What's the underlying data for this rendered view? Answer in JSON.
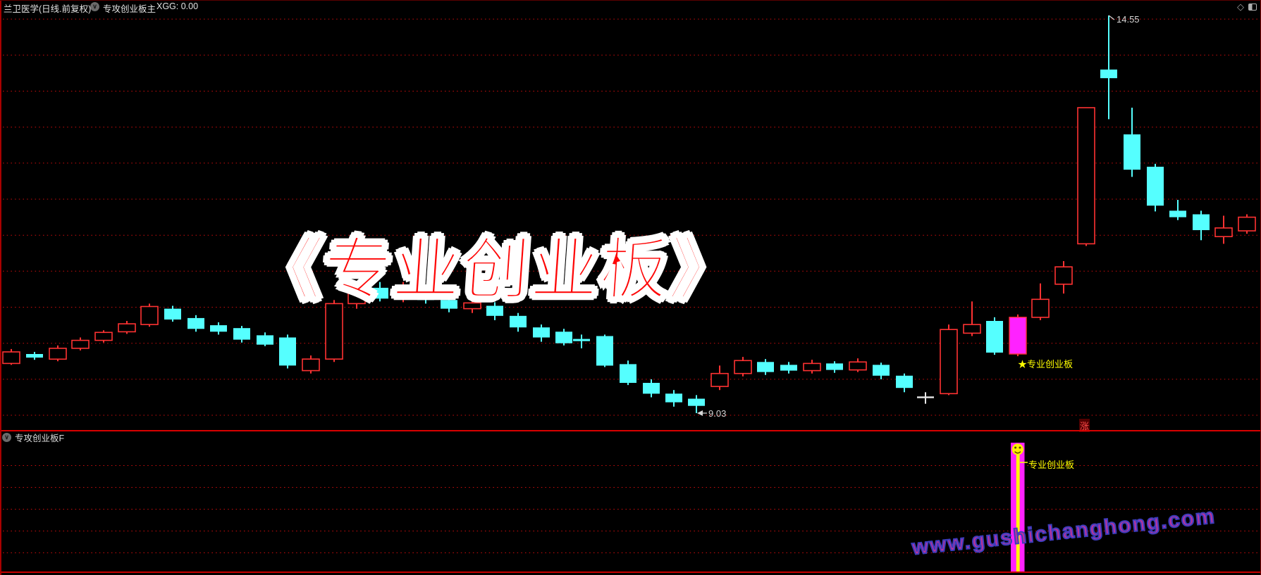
{
  "titlebar": {
    "stock_title": "兰卫医学(日线.前复权)",
    "indicator_main": "专攻创业板主",
    "xgg_value": "XGG: 0.00"
  },
  "main_chart": {
    "overlay_title": "《专业创业板》",
    "high_label": "14.55",
    "low_label": "9.03",
    "star_signal_label": "★专业创业板",
    "rise_label": "涨"
  },
  "sub_chart": {
    "indicator_label": "专攻创业板F",
    "signal_label": "专业创业板"
  },
  "watermark": "www.gushichanghong.com",
  "colors": {
    "up_candle": "#ff3232",
    "down_candle": "#55ffff",
    "signal_candle": "#ff22ff",
    "doji_candle": "#e8e8e8",
    "gridline": "#cf0d0d",
    "price_label": "#d5d5d5",
    "signal_text": "#ffff00",
    "overlay_fill": "#fe0606",
    "overlay_outline": "#ffffff",
    "watermark_fill": "#b8339e",
    "watermark_outline": "#3c3cbc",
    "panel_frame": "#d80000"
  },
  "chart_data": {
    "type": "candlestick",
    "title": "兰卫医学 日线 前复权",
    "legend_position": "none",
    "grid": {
      "visible": true,
      "style": "dotted-red-horizontal",
      "price_max": 14.5,
      "price_min": 9.0,
      "price_step": 0.5
    },
    "ylim": [
      8.84,
      14.59
    ],
    "price_high_marker": 14.55,
    "price_low_marker": 9.03,
    "candle_types": {
      "u": "up-red-hollow",
      "d": "down-cyan-solid",
      "s": "signal-magenta",
      "j": "doji-white"
    },
    "candles": [
      [
        16,
        9.72,
        9.92,
        9.7,
        9.88,
        "u"
      ],
      [
        49,
        9.85,
        9.88,
        9.77,
        9.8,
        "d"
      ],
      [
        82,
        9.78,
        9.97,
        9.75,
        9.93,
        "u"
      ],
      [
        114,
        9.93,
        10.08,
        9.9,
        10.04,
        "u"
      ],
      [
        147,
        10.04,
        10.18,
        10.01,
        10.15,
        "u"
      ],
      [
        180,
        10.16,
        10.31,
        10.13,
        10.27,
        "u"
      ],
      [
        212,
        10.26,
        10.55,
        10.23,
        10.51,
        "u"
      ],
      [
        245,
        10.48,
        10.52,
        10.3,
        10.33,
        "d"
      ],
      [
        278,
        10.35,
        10.39,
        10.16,
        10.2,
        "d"
      ],
      [
        310,
        10.25,
        10.29,
        10.12,
        10.16,
        "d"
      ],
      [
        343,
        10.21,
        10.24,
        10.01,
        10.05,
        "d"
      ],
      [
        376,
        10.11,
        10.15,
        9.96,
        9.98,
        "d"
      ],
      [
        408,
        10.08,
        10.12,
        9.65,
        9.69,
        "d"
      ],
      [
        441,
        9.62,
        9.83,
        9.58,
        9.78,
        "u"
      ],
      [
        474,
        9.78,
        10.6,
        9.74,
        10.55,
        "u"
      ],
      [
        506,
        10.55,
        10.8,
        10.48,
        10.7,
        "u"
      ],
      [
        539,
        10.77,
        10.85,
        10.58,
        10.62,
        "d"
      ],
      [
        572,
        10.62,
        10.85,
        10.57,
        10.75,
        "u"
      ],
      [
        604,
        10.75,
        10.8,
        10.55,
        10.6,
        "d"
      ],
      [
        637,
        10.6,
        10.66,
        10.43,
        10.48,
        "d"
      ],
      [
        670,
        10.48,
        10.62,
        10.42,
        10.56,
        "u"
      ],
      [
        702,
        10.52,
        10.57,
        10.32,
        10.38,
        "d"
      ],
      [
        735,
        10.38,
        10.42,
        10.16,
        10.22,
        "d"
      ],
      [
        768,
        10.22,
        10.26,
        10.02,
        10.08,
        "d"
      ],
      [
        800,
        10.16,
        10.2,
        9.97,
        10.0,
        "d"
      ],
      [
        825,
        10.06,
        10.12,
        9.93,
        10.03,
        "d"
      ],
      [
        858,
        10.1,
        10.12,
        9.67,
        9.69,
        "d"
      ],
      [
        891,
        9.71,
        9.76,
        9.42,
        9.45,
        "d"
      ],
      [
        924,
        9.45,
        9.5,
        9.25,
        9.3,
        "d"
      ],
      [
        956,
        9.3,
        9.35,
        9.12,
        9.18,
        "d"
      ],
      [
        988,
        9.23,
        9.28,
        9.03,
        9.13,
        "d"
      ],
      [
        1021,
        9.4,
        9.69,
        9.35,
        9.58,
        "u"
      ],
      [
        1054,
        9.58,
        9.81,
        9.54,
        9.76,
        "u"
      ],
      [
        1086,
        9.74,
        9.78,
        9.56,
        9.6,
        "d"
      ],
      [
        1119,
        9.7,
        9.74,
        9.58,
        9.62,
        "d"
      ],
      [
        1152,
        9.62,
        9.77,
        9.58,
        9.72,
        "u"
      ],
      [
        1184,
        9.72,
        9.75,
        9.59,
        9.63,
        "d"
      ],
      [
        1217,
        9.63,
        9.79,
        9.6,
        9.74,
        "u"
      ],
      [
        1250,
        9.7,
        9.73,
        9.5,
        9.55,
        "d"
      ],
      [
        1283,
        9.55,
        9.58,
        9.32,
        9.38,
        "d"
      ],
      [
        1313,
        9.25,
        9.32,
        9.16,
        9.25,
        "j"
      ],
      [
        1346,
        9.3,
        10.26,
        9.28,
        10.19,
        "u"
      ],
      [
        1379,
        10.14,
        10.58,
        10.1,
        10.26,
        "u"
      ],
      [
        1411,
        10.31,
        10.36,
        9.84,
        9.87,
        "d"
      ],
      [
        1444,
        10.36,
        10.4,
        9.82,
        9.85,
        "s"
      ],
      [
        1476,
        10.36,
        10.83,
        10.32,
        10.61,
        "u"
      ],
      [
        1509,
        10.82,
        11.14,
        10.69,
        11.06,
        "u"
      ],
      [
        1541,
        11.38,
        13.27,
        11.35,
        13.27,
        "u"
      ],
      [
        1573,
        13.8,
        14.55,
        13.11,
        13.68,
        "d"
      ],
      [
        1606,
        12.9,
        13.27,
        12.31,
        12.41,
        "d"
      ],
      [
        1639,
        12.45,
        12.49,
        11.83,
        11.91,
        "d"
      ],
      [
        1671,
        11.84,
        11.99,
        11.71,
        11.75,
        "d"
      ],
      [
        1704,
        11.79,
        11.84,
        11.43,
        11.57,
        "d"
      ],
      [
        1736,
        11.48,
        11.77,
        11.38,
        11.6,
        "u"
      ],
      [
        1769,
        11.56,
        11.79,
        11.52,
        11.75,
        "u"
      ]
    ],
    "signal_candle_x": 1444,
    "sub_panel": {
      "type": "signal-bar",
      "bar_x": 1444,
      "bar_color": "#ff22ff",
      "core_color": "#ffff00",
      "smiley_marker": true,
      "label": "专业创业板",
      "gridlines": 5
    }
  }
}
